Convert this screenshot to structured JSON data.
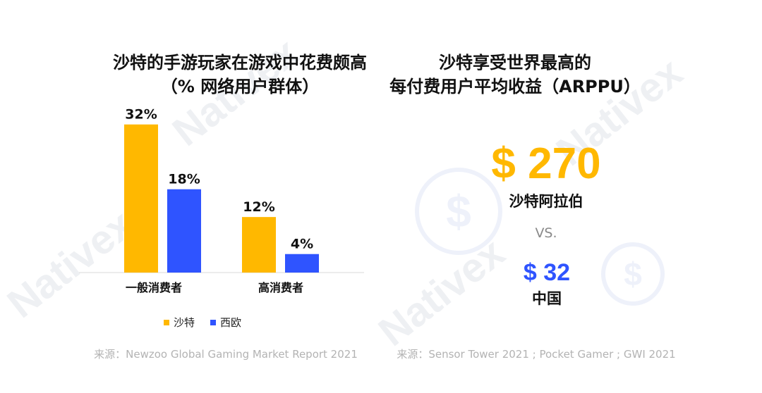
{
  "watermark": {
    "text": "Nativex",
    "symbol": "$"
  },
  "left_panel": {
    "title_line1": "沙特的手游玩家在游戏中花费颇高",
    "title_line2": "（% 网络用户群体）",
    "source": "来源：Newzoo Global Gaming Market Report 2021"
  },
  "chart_data": {
    "type": "bar",
    "categories": [
      "一般消费者",
      "高消费者"
    ],
    "series": [
      {
        "name": "沙特",
        "values": [
          32,
          12
        ],
        "labels": [
          "32%",
          "12%"
        ],
        "color": "#FFB800"
      },
      {
        "name": "西欧",
        "values": [
          18,
          4
        ],
        "labels": [
          "18%",
          "4%"
        ],
        "color": "#2F54FF"
      }
    ],
    "unit": "%",
    "ylim": [
      0,
      35
    ],
    "grid": false,
    "legend": "bottom-center"
  },
  "right_panel": {
    "title_line1": "沙特享受世界最高的",
    "title_line2": "每付费用户平均收益（ARPPU）",
    "primary": {
      "value": "$ 270",
      "region": "沙特阿拉伯",
      "color": "#FFB800"
    },
    "vs": "VS.",
    "secondary": {
      "value": "$ 32",
      "region": "中国",
      "color": "#2F54FF"
    },
    "source": "来源：Sensor Tower 2021 ; Pocket Gamer ; GWI 2021"
  }
}
